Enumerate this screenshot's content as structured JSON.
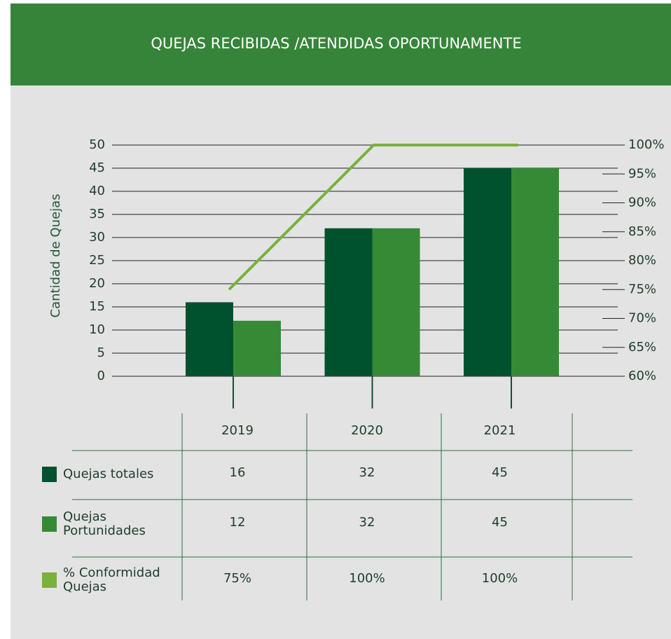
{
  "chart_data": {
    "type": "bar",
    "title": "QUEJAS RECIBIDAS /ATENDIDAS OPORTUNAMENTE",
    "y_label": "Cantidad de Quejas",
    "categories": [
      "2019",
      "2020",
      "2021"
    ],
    "series": [
      {
        "name": "Quejas totales",
        "color": "#00522f",
        "values": [
          16,
          32,
          45
        ]
      },
      {
        "name": "Quejas Portunidades",
        "color": "#368a35",
        "values": [
          12,
          32,
          45
        ]
      },
      {
        "name": "% Conformidad Quejas",
        "color": "#7ab03c",
        "type": "line",
        "axis": "y2",
        "values": [
          75,
          100,
          100
        ],
        "value_labels": [
          "75%",
          "100%",
          "100%"
        ]
      }
    ],
    "ylim": [
      0,
      50
    ],
    "yticks": [
      0,
      5,
      10,
      15,
      20,
      25,
      30,
      35,
      40,
      45,
      50
    ],
    "y2lim": [
      60,
      100
    ],
    "y2ticks": [
      {
        "value": 60,
        "label": "60%"
      },
      {
        "value": 65,
        "label": "65%"
      },
      {
        "value": 70,
        "label": "70%"
      },
      {
        "value": 75,
        "label": "75%"
      },
      {
        "value": 80,
        "label": "80%"
      },
      {
        "value": 85,
        "label": "85%"
      },
      {
        "value": 90,
        "label": "90%"
      },
      {
        "value": 95,
        "label": "95%"
      },
      {
        "value": 100,
        "label": "100%"
      }
    ],
    "grid": true
  }
}
